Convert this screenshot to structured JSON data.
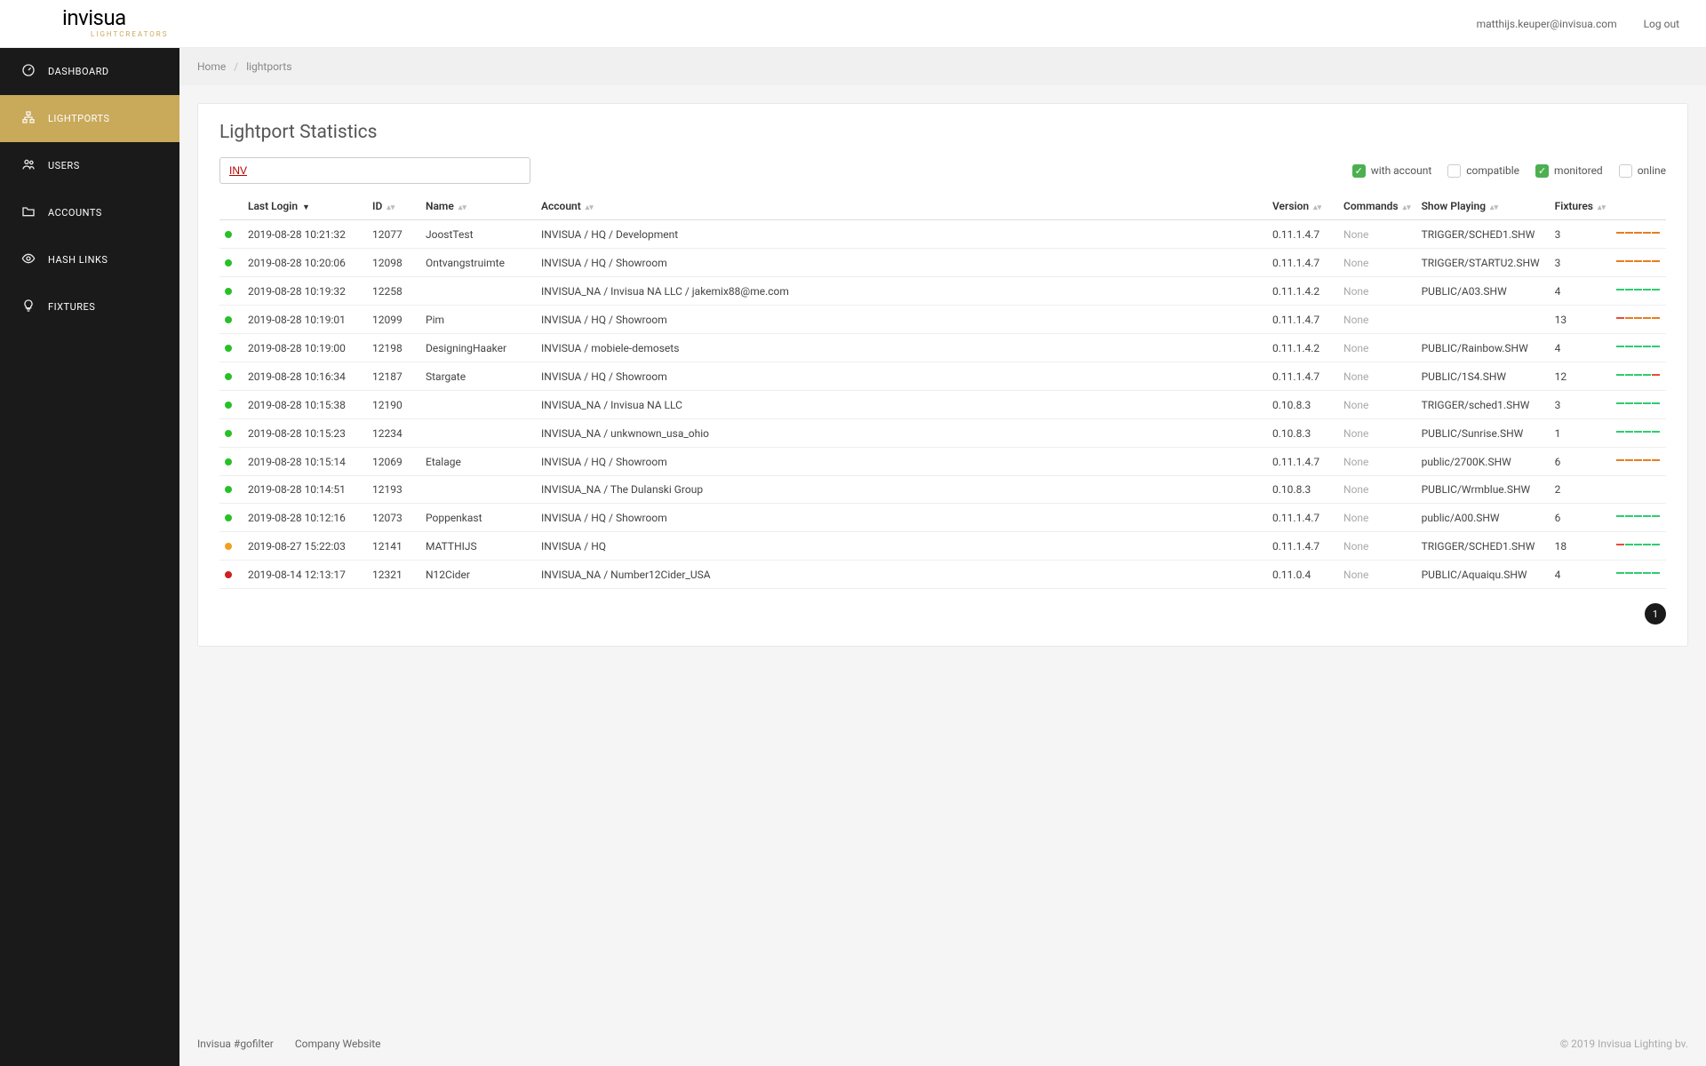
{
  "header": {
    "logo_main": "invisua",
    "logo_sub": "LIGHTCREATORS",
    "user_email": "matthijs.keuper@invisua.com",
    "logout": "Log out"
  },
  "sidebar": {
    "items": [
      {
        "label": "DASHBOARD",
        "icon": "gauge",
        "active": false
      },
      {
        "label": "LIGHTPORTS",
        "icon": "sitemap",
        "active": true
      },
      {
        "label": "USERS",
        "icon": "users",
        "active": false
      },
      {
        "label": "ACCOUNTS",
        "icon": "folder",
        "active": false
      },
      {
        "label": "HASH LINKS",
        "icon": "eye",
        "active": false
      },
      {
        "label": "FIXTURES",
        "icon": "bulb",
        "active": false
      }
    ]
  },
  "breadcrumb": {
    "home": "Home",
    "current": "lightports"
  },
  "page": {
    "title": "Lightport Statistics",
    "search_value": "INV",
    "filters": [
      {
        "label": "with account",
        "checked": true
      },
      {
        "label": "compatible",
        "checked": false
      },
      {
        "label": "monitored",
        "checked": true
      },
      {
        "label": "online",
        "checked": false
      }
    ],
    "columns": {
      "last_login": "Last Login",
      "id": "ID",
      "name": "Name",
      "account": "Account",
      "version": "Version",
      "commands": "Commands",
      "show": "Show Playing",
      "fixtures": "Fixtures"
    },
    "rows": [
      {
        "status": "#28c028",
        "last_login": "2019-08-28 10:21:32",
        "id": "12077",
        "name": "JoostTest",
        "account": "INVISUA / HQ / Development",
        "version": "0.11.1.4.7",
        "commands": "None",
        "show": "TRIGGER/SCHED1.SHW",
        "fixtures": "3",
        "spark": [
          "#e67e22",
          "#e67e22",
          "#e67e22",
          "#e67e22",
          "#e67e22"
        ]
      },
      {
        "status": "#28c028",
        "last_login": "2019-08-28 10:20:06",
        "id": "12098",
        "name": "Ontvangstruimte",
        "account": "INVISUA / HQ / Showroom",
        "version": "0.11.1.4.7",
        "commands": "None",
        "show": "TRIGGER/STARTU2.SHW",
        "fixtures": "3",
        "spark": [
          "#e67e22",
          "#e67e22",
          "#e67e22",
          "#e67e22",
          "#e67e22"
        ]
      },
      {
        "status": "#28c028",
        "last_login": "2019-08-28 10:19:32",
        "id": "12258",
        "name": "",
        "account": "INVISUA_NA / Invisua NA LLC / jakemix88@me.com",
        "version": "0.11.1.4.2",
        "commands": "None",
        "show": "PUBLIC/A03.SHW",
        "fixtures": "4",
        "spark": [
          "#2ecc71",
          "#2ecc71",
          "#2ecc71",
          "#2ecc71",
          "#2ecc71"
        ]
      },
      {
        "status": "#28c028",
        "last_login": "2019-08-28 10:19:01",
        "id": "12099",
        "name": "Pim",
        "account": "INVISUA / HQ / Showroom",
        "version": "0.11.1.4.7",
        "commands": "None",
        "show": "",
        "fixtures": "13",
        "spark": [
          "#e74c3c",
          "#e67e22",
          "#e67e22",
          "#e67e22",
          "#e67e22"
        ]
      },
      {
        "status": "#28c028",
        "last_login": "2019-08-28 10:19:00",
        "id": "12198",
        "name": "DesigningHaaker",
        "account": "INVISUA / mobiele-demosets",
        "version": "0.11.1.4.2",
        "commands": "None",
        "show": "PUBLIC/Rainbow.SHW",
        "fixtures": "4",
        "spark": [
          "#2ecc71",
          "#2ecc71",
          "#2ecc71",
          "#2ecc71",
          "#2ecc71"
        ]
      },
      {
        "status": "#28c028",
        "last_login": "2019-08-28 10:16:34",
        "id": "12187",
        "name": "Stargate",
        "account": "INVISUA / HQ / Showroom",
        "version": "0.11.1.4.7",
        "commands": "None",
        "show": "PUBLIC/1S4.SHW",
        "fixtures": "12",
        "spark": [
          "#2ecc71",
          "#2ecc71",
          "#2ecc71",
          "#2ecc71",
          "#e74c3c"
        ]
      },
      {
        "status": "#28c028",
        "last_login": "2019-08-28 10:15:38",
        "id": "12190",
        "name": "",
        "account": "INVISUA_NA / Invisua NA LLC",
        "version": "0.10.8.3",
        "commands": "None",
        "show": "TRIGGER/sched1.SHW",
        "fixtures": "3",
        "spark": [
          "#2ecc71",
          "#2ecc71",
          "#2ecc71",
          "#2ecc71",
          "#2ecc71"
        ]
      },
      {
        "status": "#28c028",
        "last_login": "2019-08-28 10:15:23",
        "id": "12234",
        "name": "",
        "account": "INVISUA_NA / unkwnown_usa_ohio",
        "version": "0.10.8.3",
        "commands": "None",
        "show": "PUBLIC/Sunrise.SHW",
        "fixtures": "1",
        "spark": [
          "#2ecc71",
          "#2ecc71",
          "#2ecc71",
          "#2ecc71",
          "#2ecc71"
        ]
      },
      {
        "status": "#28c028",
        "last_login": "2019-08-28 10:15:14",
        "id": "12069",
        "name": "Etalage",
        "account": "INVISUA / HQ / Showroom",
        "version": "0.11.1.4.7",
        "commands": "None",
        "show": "public/2700K.SHW",
        "fixtures": "6",
        "spark": [
          "#e67e22",
          "#e67e22",
          "#e67e22",
          "#e67e22",
          "#e67e22"
        ]
      },
      {
        "status": "#28c028",
        "last_login": "2019-08-28 10:14:51",
        "id": "12193",
        "name": "",
        "account": "INVISUA_NA / The Dulanski Group",
        "version": "0.10.8.3",
        "commands": "None",
        "show": "PUBLIC/Wrmblue.SHW",
        "fixtures": "2",
        "spark": []
      },
      {
        "status": "#28c028",
        "last_login": "2019-08-28 10:12:16",
        "id": "12073",
        "name": "Poppenkast",
        "account": "INVISUA / HQ / Showroom",
        "version": "0.11.1.4.7",
        "commands": "None",
        "show": "public/A00.SHW",
        "fixtures": "6",
        "spark": [
          "#2ecc71",
          "#2ecc71",
          "#2ecc71",
          "#2ecc71",
          "#2ecc71"
        ]
      },
      {
        "status": "#f0a020",
        "last_login": "2019-08-27 15:22:03",
        "id": "12141",
        "name": "MATTHIJS",
        "account": "INVISUA / HQ",
        "version": "0.11.1.4.7",
        "commands": "None",
        "show": "TRIGGER/SCHED1.SHW",
        "fixtures": "18",
        "spark": [
          "#e74c3c",
          "#2ecc71",
          "#2ecc71",
          "#2ecc71",
          "#2ecc71"
        ]
      },
      {
        "status": "#d02020",
        "last_login": "2019-08-14 12:13:17",
        "id": "12321",
        "name": "N12Cider",
        "account": "INVISUA_NA / Number12Cider_USA",
        "version": "0.11.0.4",
        "commands": "None",
        "show": "PUBLIC/Aquaiqu.SHW",
        "fixtures": "4",
        "spark": [
          "#2ecc71",
          "#2ecc71",
          "#2ecc71",
          "#2ecc71",
          "#2ecc71"
        ]
      }
    ],
    "pagination": {
      "current": "1"
    }
  },
  "footer": {
    "left1": "Invisua #gofilter",
    "left2": "Company Website",
    "right": "© 2019 Invisua Lighting bv."
  }
}
